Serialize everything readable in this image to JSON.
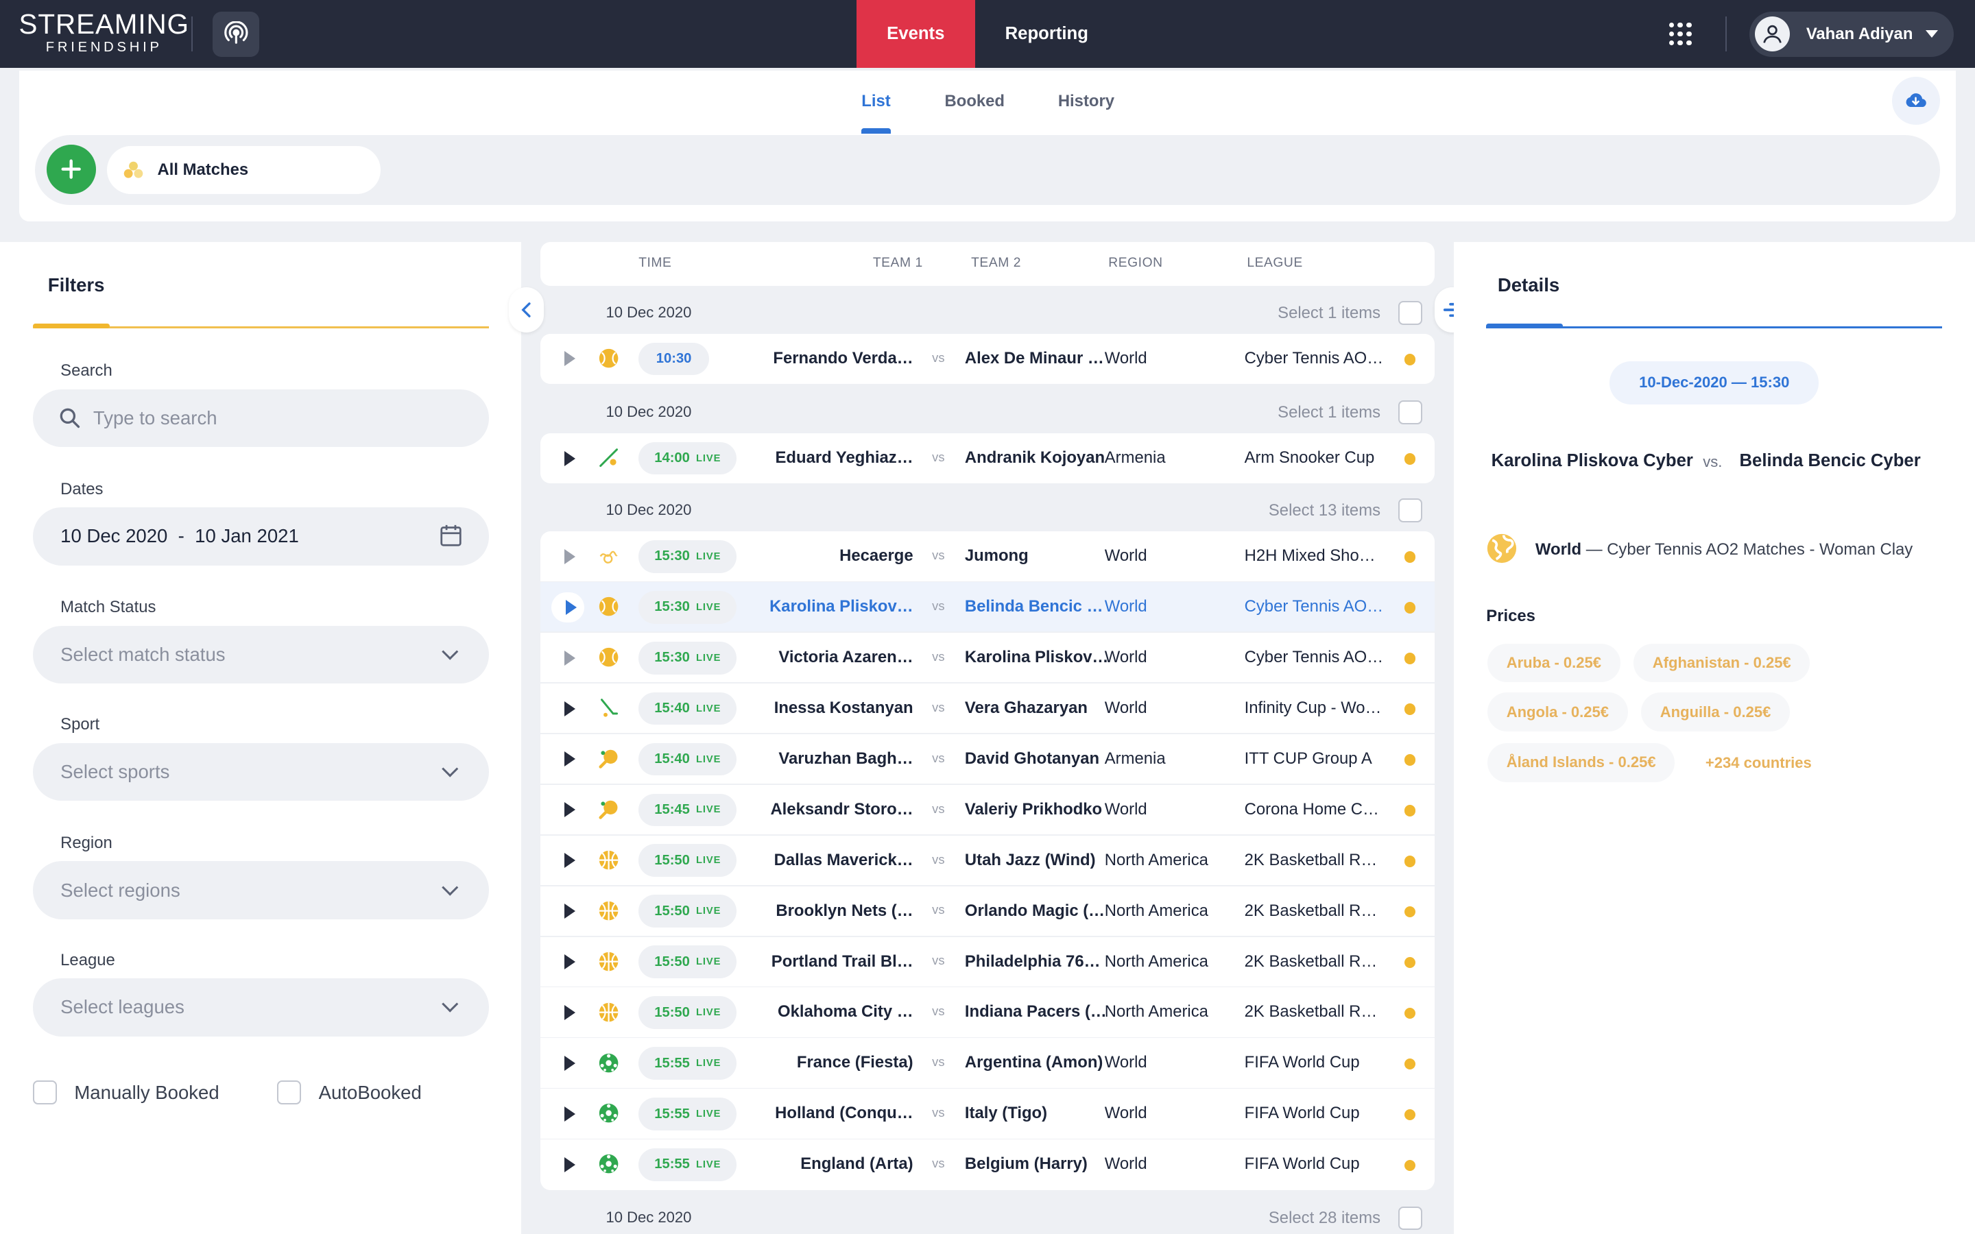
{
  "brand": {
    "line1": "STREAMING",
    "line2": "FRIENDSHIP"
  },
  "nav": {
    "events": "Events",
    "reporting": "Reporting"
  },
  "user": {
    "name": "Vahan Adiyan"
  },
  "subtabs": {
    "list": "List",
    "booked": "Booked",
    "history": "History"
  },
  "matchbar": {
    "all_matches": "All Matches"
  },
  "filters": {
    "title": "Filters",
    "search_label": "Search",
    "search_placeholder": "Type to search",
    "dates_label": "Dates",
    "dates_value": "10 Dec 2020  -  10 Jan 2021",
    "status_label": "Match Status",
    "status_placeholder": "Select match status",
    "sport_label": "Sport",
    "sport_placeholder": "Select sports",
    "region_label": "Region",
    "region_placeholder": "Select regions",
    "league_label": "League",
    "league_placeholder": "Select leagues",
    "manually_booked": "Manually Booked",
    "autobooked": "AutoBooked"
  },
  "columns": {
    "time": "TIME",
    "team1": "TEAM 1",
    "team2": "TEAM 2",
    "region": "REGION",
    "league": "LEAGUE"
  },
  "live_label": "LIVE",
  "vs": "vs",
  "groups": [
    {
      "date": "10 Dec 2020",
      "select": "Select 1 items"
    },
    {
      "date": "10 Dec 2020",
      "select": "Select 1 items"
    },
    {
      "date": "10 Dec 2020",
      "select": "Select 13 items"
    },
    {
      "date": "10 Dec 2020",
      "select": "Select 28 items"
    }
  ],
  "rows": [
    {
      "sport": "tennis",
      "time": "10:30",
      "live": false,
      "team1": "Fernando Verda…",
      "team2": "Alex De Minaur …",
      "region": "World",
      "league": "Cyber Tennis AO…"
    },
    {
      "sport": "snooker",
      "time": "14:00",
      "live": true,
      "team1": "Eduard Yeghiaz…",
      "team2": "Andranik Kojoyan",
      "region": "Armenia",
      "league": "Arm Snooker Cup"
    },
    {
      "sport": "mixed",
      "time": "15:30",
      "live": true,
      "team1": "Hecaerge",
      "team2": "Jumong",
      "region": "World",
      "league": "H2H Mixed Sho…"
    },
    {
      "sport": "tennis",
      "time": "15:30",
      "live": true,
      "team1": "Karolina Pliskov…",
      "team2": "Belinda Bencic …",
      "region": "World",
      "league": "Cyber Tennis AO…"
    },
    {
      "sport": "tennis",
      "time": "15:30",
      "live": true,
      "team1": "Victoria Azaren…",
      "team2": "Karolina Pliskov…",
      "region": "World",
      "league": "Cyber Tennis AO…"
    },
    {
      "sport": "hockey",
      "time": "15:40",
      "live": true,
      "team1": "Inessa Kostanyan",
      "team2": "Vera Ghazaryan",
      "region": "World",
      "league": "Infinity Cup - Wo…"
    },
    {
      "sport": "table-tennis",
      "time": "15:40",
      "live": true,
      "team1": "Varuzhan Bagh…",
      "team2": "David Ghotanyan",
      "region": "Armenia",
      "league": "ITT CUP Group A"
    },
    {
      "sport": "table-tennis",
      "time": "15:45",
      "live": true,
      "team1": "Aleksandr Storo…",
      "team2": "Valeriy Prikhodko",
      "region": "World",
      "league": "Corona Home C…"
    },
    {
      "sport": "basketball",
      "time": "15:50",
      "live": true,
      "team1": "Dallas Maverick…",
      "team2": "Utah Jazz (Wind)",
      "region": "North America",
      "league": "2K Basketball R…"
    },
    {
      "sport": "basketball",
      "time": "15:50",
      "live": true,
      "team1": "Brooklyn Nets (…",
      "team2": "Orlando Magic (…",
      "region": "North America",
      "league": "2K Basketball R…"
    },
    {
      "sport": "basketball",
      "time": "15:50",
      "live": true,
      "team1": "Portland Trail Bl…",
      "team2": "Philadelphia 76…",
      "region": "North America",
      "league": "2K Basketball R…"
    },
    {
      "sport": "basketball",
      "time": "15:50",
      "live": true,
      "team1": "Oklahoma City …",
      "team2": "Indiana Pacers (…",
      "region": "North America",
      "league": "2K Basketball R…"
    },
    {
      "sport": "football",
      "time": "15:55",
      "live": true,
      "team1": "France (Fiesta)",
      "team2": "Argentina (Amon)",
      "region": "World",
      "league": "FIFA World Cup"
    },
    {
      "sport": "football",
      "time": "15:55",
      "live": true,
      "team1": "Holland (Conqu…",
      "team2": "Italy (Tigo)",
      "region": "World",
      "league": "FIFA World Cup"
    },
    {
      "sport": "football",
      "time": "15:55",
      "live": true,
      "team1": "England (Arta)",
      "team2": "Belgium (Harry)",
      "region": "World",
      "league": "FIFA World Cup"
    }
  ],
  "details": {
    "title": "Details",
    "datetime": "10-Dec-2020 — 15:30",
    "team1": "Karolina Pliskova Cyber",
    "vs": "vs.",
    "team2": "Belinda Bencic Cyber",
    "region": "World",
    "league": " — Cyber Tennis AO2 Matches - Woman Clay",
    "prices_title": "Prices",
    "prices": [
      "Aruba - 0.25€",
      "Afghanistan - 0.25€",
      "Angola - 0.25€",
      "Anguilla - 0.25€",
      "Åland Islands - 0.25€"
    ],
    "more": "+234 countries"
  },
  "colors": {
    "accent": "#2f74d6",
    "events_tab": "#df3348",
    "live": "#2fa84f",
    "status_dot": "#f1b72e",
    "topbar": "#262b3b"
  }
}
